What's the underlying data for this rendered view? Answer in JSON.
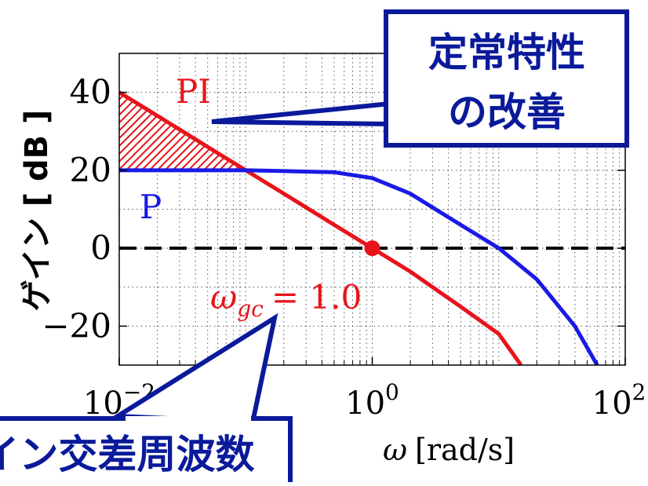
{
  "chart_data": {
    "type": "line",
    "xlabel": "ω [rad/s]",
    "xlabel_symbol": "ω",
    "xlabel_unit": "[rad/s]",
    "ylabel": "ゲイン [ dB ]",
    "xscale": "log",
    "xlim": [
      0.01,
      100
    ],
    "ylim": [
      -30,
      50
    ],
    "grid": true,
    "x_ticks": [
      {
        "value": 0.01,
        "base": "10",
        "exp": "−2"
      },
      {
        "value": 1,
        "base": "10",
        "exp": "0"
      },
      {
        "value": 100,
        "base": "10",
        "exp": "2"
      }
    ],
    "y_ticks": [
      {
        "value": 40,
        "label": "40"
      },
      {
        "value": 20,
        "label": "20"
      },
      {
        "value": 0,
        "label": "0"
      },
      {
        "value": -20,
        "label": "−20"
      }
    ],
    "series": [
      {
        "name": "PI",
        "color": "#e8141b",
        "x": [
          0.01,
          0.02,
          0.05,
          0.1,
          0.2,
          0.5,
          1,
          2,
          5,
          10,
          15
        ],
        "y": [
          40,
          34,
          26,
          20,
          14,
          6,
          0,
          -6,
          -15,
          -22,
          -30
        ]
      },
      {
        "name": "P",
        "color": "#1a1ae6",
        "x": [
          0.01,
          0.05,
          0.1,
          0.2,
          0.5,
          1,
          2,
          5,
          10,
          20,
          40,
          60
        ],
        "y": [
          20,
          20,
          20,
          19.8,
          19.5,
          18,
          14,
          6,
          0,
          -8,
          -20,
          -30
        ]
      }
    ],
    "reference_line": {
      "y": 0,
      "style": "dashed",
      "color": "#000000"
    },
    "crossover_point": {
      "x": 1,
      "y": 0,
      "color": "#e8141b"
    },
    "annotation_wgc": {
      "symbol": "ω",
      "subscript": "gc",
      "value": "= 1.0"
    },
    "hatched_region": {
      "between": [
        "PI",
        "P"
      ],
      "x_range": [
        0.01,
        0.1
      ],
      "color": "#e8141b"
    },
    "callouts": [
      {
        "lines": [
          "定常特性",
          "の改善"
        ],
        "border_color": "#0a1a9a",
        "text_color": "#0a1a9a"
      },
      {
        "lines": [
          "ゲイン交差周波数"
        ],
        "border_color": "#0a1a9a",
        "text_color": "#0a1a9a"
      }
    ]
  }
}
